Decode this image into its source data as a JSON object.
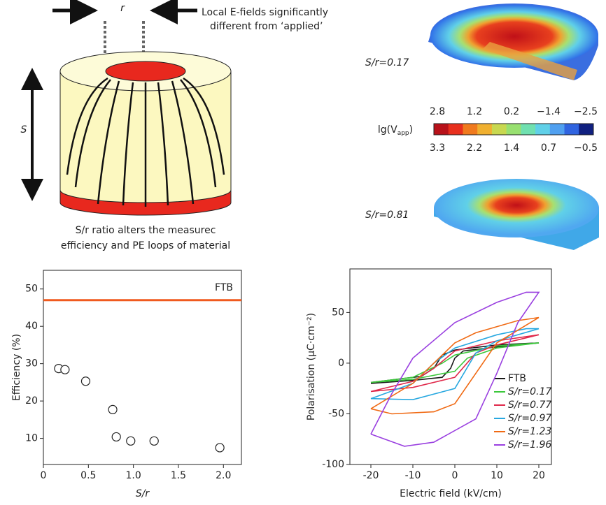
{
  "diagram": {
    "r_label": "r",
    "note_line1": "Local E-fields significantly",
    "note_line2": "different from ‘applied’",
    "s_label": "S",
    "caption_line1": "S/r ratio alters the measurec",
    "caption_line2": "efficiency and PE loops of material",
    "render_top_label": "S/r=0.17",
    "render_bottom_label": "S/r=0.81"
  },
  "colorbar": {
    "label": "lg(V",
    "label_sub": "app",
    "label_end": ")",
    "top_labels": [
      "2.8",
      "1.2",
      "0.2",
      "−1.4",
      "−2.5"
    ],
    "bottom_labels": [
      "3.3",
      "2.2",
      "1.4",
      "0.7",
      "−0.5"
    ],
    "colors": [
      "#b8121a",
      "#e8301e",
      "#f07a1e",
      "#f0b030",
      "#c8d850",
      "#98e070",
      "#70e0b0",
      "#60d0e8",
      "#50a0f0",
      "#3064e0",
      "#102080"
    ]
  },
  "chart_data": [
    {
      "type": "scatter",
      "xlabel": "S/r",
      "ylabel": "Efficiency (%)",
      "x": [
        0.17,
        0.24,
        0.47,
        0.77,
        0.81,
        0.97,
        1.23,
        1.96
      ],
      "values": [
        28.7,
        28.4,
        25.3,
        17.7,
        10.4,
        9.3,
        9.3,
        7.5
      ],
      "hline": {
        "value": 47,
        "label": "FTB",
        "color": "#f05a1e"
      },
      "xlim": [
        0,
        2.2
      ],
      "ylim": [
        3,
        55
      ],
      "xticks": [
        0,
        0.5,
        {
          "value": 1,
          "label": "1.0"
        },
        1.5,
        {
          "value": 2,
          "label": "2.0"
        }
      ],
      "yticks": [
        10,
        20,
        30,
        40,
        50
      ]
    },
    {
      "type": "line",
      "xlabel": "Electric field (kV/cm)",
      "ylabel": "Polarisation (μC·cm⁻²)",
      "xlim": [
        -25,
        23
      ],
      "ylim": [
        -100,
        93
      ],
      "xticks": [
        -20,
        -10,
        0,
        10,
        20
      ],
      "yticks": [
        -100,
        -50,
        0,
        50
      ],
      "series": [
        {
          "name": "FTB",
          "color": "#1a1a1a",
          "x": [
            -20,
            -10,
            -3,
            -1,
            0,
            2,
            10,
            20,
            10,
            0,
            -3,
            -5,
            -8,
            -20
          ],
          "values": [
            -20,
            -17,
            -14,
            -5,
            5,
            12,
            16,
            20,
            18,
            13,
            8,
            -5,
            -13,
            -19
          ]
        },
        {
          "name": "S/r=0.17",
          "color": "#3cc83c",
          "x": [
            -20,
            -10,
            0,
            3,
            10,
            20,
            10,
            0,
            -3,
            -10,
            -20
          ],
          "values": [
            -19,
            -16,
            -8,
            5,
            15,
            20,
            17,
            8,
            0,
            -14,
            -19
          ]
        },
        {
          "name": "S/r=0.77",
          "color": "#e0284a",
          "x": [
            -20,
            -10,
            0,
            5,
            10,
            20,
            10,
            0,
            -5,
            -10,
            -20
          ],
          "values": [
            -28,
            -24,
            -14,
            10,
            18,
            28,
            22,
            12,
            -5,
            -18,
            -28
          ]
        },
        {
          "name": "S/r=0.97",
          "color": "#28a8e0",
          "x": [
            -20,
            -10,
            0,
            5,
            10,
            20,
            17,
            10,
            0,
            -5,
            -10,
            -20
          ],
          "values": [
            -35,
            -36,
            -25,
            10,
            22,
            34,
            34,
            28,
            15,
            0,
            -20,
            -35
          ]
        },
        {
          "name": "S/r=1.23",
          "color": "#f06a14",
          "x": [
            -20,
            -15,
            -5,
            0,
            5,
            10,
            20,
            15,
            5,
            0,
            -5,
            -10,
            -20
          ],
          "values": [
            -45,
            -50,
            -48,
            -40,
            -10,
            20,
            45,
            42,
            30,
            20,
            0,
            -20,
            -45
          ]
        },
        {
          "name": "S/r=1.96",
          "color": "#9a40e0",
          "x": [
            -20,
            -12,
            -5,
            5,
            10,
            15,
            20,
            17,
            10,
            0,
            -10,
            -15,
            -20
          ],
          "values": [
            -70,
            -82,
            -78,
            -55,
            -10,
            40,
            70,
            70,
            60,
            40,
            5,
            -30,
            -70
          ]
        }
      ]
    }
  ]
}
